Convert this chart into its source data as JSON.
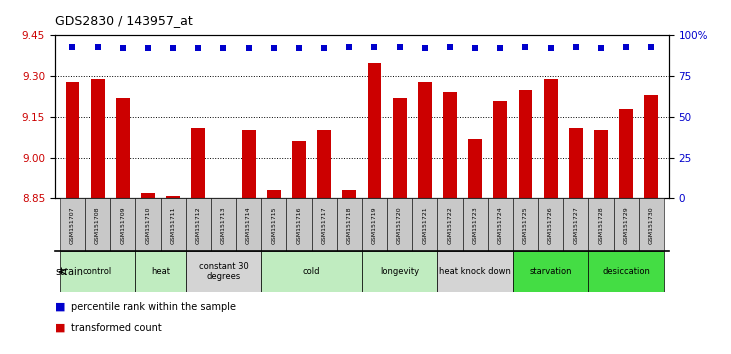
{
  "title": "GDS2830 / 143957_at",
  "samples": [
    "GSM151707",
    "GSM151708",
    "GSM151709",
    "GSM151710",
    "GSM151711",
    "GSM151712",
    "GSM151713",
    "GSM151714",
    "GSM151715",
    "GSM151716",
    "GSM151717",
    "GSM151718",
    "GSM151719",
    "GSM151720",
    "GSM151721",
    "GSM151722",
    "GSM151723",
    "GSM151724",
    "GSM151725",
    "GSM151726",
    "GSM151727",
    "GSM151728",
    "GSM151729",
    "GSM151730"
  ],
  "red_values": [
    9.28,
    9.29,
    9.22,
    8.87,
    8.86,
    9.11,
    8.84,
    9.1,
    8.88,
    9.06,
    9.1,
    8.88,
    9.35,
    9.22,
    9.28,
    9.24,
    9.07,
    9.21,
    9.25,
    9.29,
    9.11,
    9.1,
    9.18,
    9.23
  ],
  "blue_values": [
    93,
    93,
    92,
    92,
    92,
    92,
    92,
    92,
    92,
    92,
    92,
    93,
    93,
    93,
    92,
    93,
    92,
    92,
    93,
    92,
    93,
    92,
    93,
    93
  ],
  "ylim_left": [
    8.85,
    9.45
  ],
  "ylim_right": [
    0,
    100
  ],
  "yticks_left": [
    8.85,
    9.0,
    9.15,
    9.3,
    9.45
  ],
  "yticks_right": [
    0,
    25,
    50,
    75,
    100
  ],
  "dotted_lines": [
    9.0,
    9.15,
    9.3
  ],
  "groups": [
    {
      "label": "control",
      "start": 0,
      "end": 2,
      "color": "#c0ecc0"
    },
    {
      "label": "heat",
      "start": 3,
      "end": 4,
      "color": "#c0ecc0"
    },
    {
      "label": "constant 30\ndegrees",
      "start": 5,
      "end": 7,
      "color": "#d4d4d4"
    },
    {
      "label": "cold",
      "start": 8,
      "end": 11,
      "color": "#c0ecc0"
    },
    {
      "label": "longevity",
      "start": 12,
      "end": 14,
      "color": "#c0ecc0"
    },
    {
      "label": "heat knock down",
      "start": 15,
      "end": 17,
      "color": "#d4d4d4"
    },
    {
      "label": "starvation",
      "start": 18,
      "end": 20,
      "color": "#44dd44"
    },
    {
      "label": "desiccation",
      "start": 21,
      "end": 23,
      "color": "#44dd44"
    }
  ],
  "bar_color": "#cc0000",
  "dot_color": "#0000cc",
  "tick_color_left": "#cc0000",
  "tick_color_right": "#0000cc",
  "sample_box_color": "#c8c8c8",
  "legend_red_label": "transformed count",
  "legend_blue_label": "percentile rank within the sample",
  "strain_label": "strain"
}
